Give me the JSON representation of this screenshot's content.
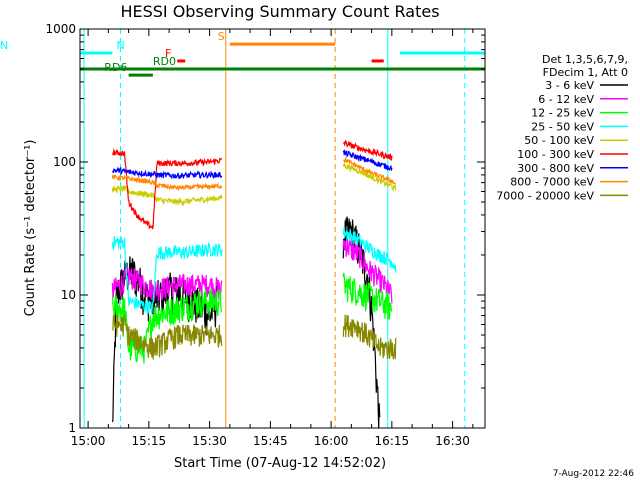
{
  "chart_data": {
    "type": "line",
    "title": "HESSI Observing Summary Count Rates",
    "xlabel": "Start Time (07-Aug-12 14:52:02)",
    "ylabel": "Count Rate (s⁻¹ detector⁻¹)",
    "yscale": "log",
    "ylim": [
      1,
      1000
    ],
    "xlim": [
      -2,
      98
    ],
    "x_units": "minutes after 15:00 UT",
    "x_ticks": [
      {
        "x": 0,
        "label": "15:00"
      },
      {
        "x": 15,
        "label": "15:15"
      },
      {
        "x": 30,
        "label": "15:30"
      },
      {
        "x": 45,
        "label": "15:45"
      },
      {
        "x": 60,
        "label": "16:00"
      },
      {
        "x": 75,
        "label": "16:15"
      },
      {
        "x": 90,
        "label": "16:30"
      }
    ],
    "y_ticks": [
      {
        "y": 1,
        "label": "1"
      },
      {
        "y": 10,
        "label": "10"
      },
      {
        "y": 100,
        "label": "100"
      },
      {
        "y": 1000,
        "label": "1000"
      }
    ],
    "legend_header": [
      "Det 1,3,5,6,7,9,",
      "FDecim 1, Att 0"
    ],
    "legend_position": "right",
    "timestamp": "7-Aug-2012 22:46",
    "series": [
      {
        "name": "3 - 6 keV",
        "color": "#000000",
        "noise": 0.35,
        "segments": [
          [
            [
              6,
              1
            ],
            [
              7,
              10
            ],
            [
              9,
              14
            ],
            [
              11,
              15
            ],
            [
              13,
              12
            ],
            [
              14,
              10
            ],
            [
              16,
              9
            ],
            [
              20,
              11
            ],
            [
              24,
              10
            ],
            [
              28,
              8
            ],
            [
              30,
              7
            ],
            [
              32,
              9
            ]
          ],
          [
            [
              63,
              28
            ],
            [
              65,
              30
            ],
            [
              67,
              22
            ],
            [
              69,
              14
            ],
            [
              70,
              8
            ],
            [
              71,
              3
            ],
            [
              72,
              1
            ]
          ]
        ]
      },
      {
        "name": "6 - 12 keV",
        "color": "#ff00ff",
        "noise": 0.2,
        "segments": [
          [
            [
              6,
              11
            ],
            [
              8,
              12
            ],
            [
              10,
              14
            ],
            [
              12,
              13
            ],
            [
              14,
              12
            ],
            [
              16,
              11
            ],
            [
              22,
              12
            ],
            [
              26,
              12
            ],
            [
              30,
              12
            ],
            [
              33,
              11
            ]
          ],
          [
            [
              63,
              25
            ],
            [
              65,
              22
            ],
            [
              67,
              20
            ],
            [
              69,
              16
            ],
            [
              71,
              14
            ],
            [
              73,
              12
            ],
            [
              75,
              10
            ]
          ]
        ]
      },
      {
        "name": "12 - 25 keV",
        "color": "#00ff00",
        "noise": 0.25,
        "segments": [
          [
            [
              6,
              8
            ],
            [
              8,
              8
            ],
            [
              9,
              8
            ],
            [
              10,
              4
            ],
            [
              14,
              4
            ],
            [
              16,
              7
            ],
            [
              22,
              8
            ],
            [
              28,
              9
            ],
            [
              32,
              9
            ],
            [
              33,
              9
            ]
          ],
          [
            [
              63,
              12
            ],
            [
              66,
              11
            ],
            [
              69,
              10
            ],
            [
              72,
              9
            ],
            [
              75,
              8
            ]
          ]
        ]
      },
      {
        "name": "25 - 50 keV",
        "color": "#00ffff",
        "noise": 0.12,
        "segments": [
          [
            [
              6,
              25
            ],
            [
              9,
              25
            ],
            [
              10,
              9
            ],
            [
              16,
              8
            ],
            [
              17,
              21
            ],
            [
              25,
              21
            ],
            [
              30,
              22
            ],
            [
              33,
              22
            ]
          ],
          [
            [
              63,
              30
            ],
            [
              66,
              27
            ],
            [
              69,
              23
            ],
            [
              72,
              20
            ],
            [
              75,
              18
            ],
            [
              76,
              16
            ]
          ]
        ]
      },
      {
        "name": "50 - 100 keV",
        "color": "#cccc00",
        "noise": 0.05,
        "segments": [
          [
            [
              6,
              62
            ],
            [
              9,
              63
            ],
            [
              10,
              60
            ],
            [
              16,
              56
            ],
            [
              17,
              52
            ],
            [
              22,
              50
            ],
            [
              28,
              52
            ],
            [
              33,
              54
            ]
          ],
          [
            [
              63,
              95
            ],
            [
              66,
              88
            ],
            [
              69,
              80
            ],
            [
              72,
              72
            ],
            [
              75,
              66
            ],
            [
              76,
              62
            ]
          ]
        ]
      },
      {
        "name": "100 - 300 keV",
        "color": "#ff0000",
        "noise": 0.05,
        "segments": [
          [
            [
              6,
              118
            ],
            [
              8,
              117
            ],
            [
              9,
              116
            ],
            [
              10,
              50
            ],
            [
              12,
              40
            ],
            [
              14,
              35
            ],
            [
              16,
              32
            ],
            [
              17,
              98
            ],
            [
              24,
              98
            ],
            [
              30,
              100
            ],
            [
              33,
              103
            ]
          ],
          [
            [
              63,
              140
            ],
            [
              66,
              130
            ],
            [
              69,
              122
            ],
            [
              72,
              115
            ],
            [
              75,
              108
            ]
          ]
        ]
      },
      {
        "name": "300 - 800 keV",
        "color": "#0000ff",
        "noise": 0.05,
        "segments": [
          [
            [
              6,
              87
            ],
            [
              8,
              86
            ],
            [
              10,
              84
            ],
            [
              12,
              83
            ],
            [
              16,
              81
            ],
            [
              17,
              80
            ],
            [
              22,
              79
            ],
            [
              28,
              80
            ],
            [
              33,
              80
            ]
          ],
          [
            [
              63,
              118
            ],
            [
              66,
              110
            ],
            [
              69,
              103
            ],
            [
              72,
              96
            ],
            [
              75,
              90
            ]
          ]
        ]
      },
      {
        "name": "800 - 7000 keV",
        "color": "#ff8800",
        "noise": 0.04,
        "segments": [
          [
            [
              6,
              77
            ],
            [
              8,
              76
            ],
            [
              10,
              75
            ],
            [
              14,
              72
            ],
            [
              16,
              70
            ],
            [
              17,
              67
            ],
            [
              22,
              64
            ],
            [
              28,
              65
            ],
            [
              33,
              66
            ]
          ],
          [
            [
              63,
              105
            ],
            [
              66,
              95
            ],
            [
              69,
              85
            ],
            [
              72,
              78
            ],
            [
              75,
              72
            ],
            [
              76,
              68
            ]
          ]
        ]
      },
      {
        "name": "7000 - 20000 keV",
        "color": "#888800",
        "noise": 0.2,
        "segments": [
          [
            [
              6,
              6
            ],
            [
              9,
              6
            ],
            [
              10,
              5
            ],
            [
              16,
              4
            ],
            [
              22,
              5
            ],
            [
              28,
              5
            ],
            [
              33,
              5
            ]
          ],
          [
            [
              63,
              6
            ],
            [
              66,
              6
            ],
            [
              69,
              5
            ],
            [
              72,
              4
            ],
            [
              75,
              4
            ],
            [
              76,
              4
            ]
          ]
        ]
      }
    ],
    "flags": [
      {
        "label": "N",
        "color": "#00ffff",
        "start": -2,
        "end": 6,
        "y": 660,
        "label_x": 7
      },
      {
        "label": "N",
        "color": "#00ffff",
        "start": 77,
        "end": 98,
        "y": 660
      },
      {
        "label": "RD6",
        "color": "#008000",
        "start": 10,
        "end": 16,
        "y": 450,
        "label_x": 4
      },
      {
        "label": "RD0",
        "color": "#008000",
        "start": -2,
        "end": 98,
        "y": 500,
        "label_x": 16
      },
      {
        "label": "F",
        "color": "#ff0000",
        "start": 22,
        "end": 24,
        "y": 575,
        "label_x": 19
      },
      {
        "label": "",
        "color": "#ff0000",
        "start": 70,
        "end": 73,
        "y": 575
      },
      {
        "label": "S",
        "color": "#ff8800",
        "start": 35,
        "end": 61,
        "y": 770,
        "label_x": 32
      }
    ],
    "vlines": [
      {
        "x": -1,
        "color": "#00ffff",
        "style": "solid"
      },
      {
        "x": 8,
        "color": "#00ffff",
        "style": "dashed"
      },
      {
        "x": 34,
        "color": "#ff8800",
        "style": "solid"
      },
      {
        "x": 61,
        "color": "#ff8800",
        "style": "dashed"
      },
      {
        "x": 74,
        "color": "#00ffff",
        "style": "solid"
      },
      {
        "x": 93,
        "color": "#00ffff",
        "style": "dashed"
      }
    ]
  }
}
